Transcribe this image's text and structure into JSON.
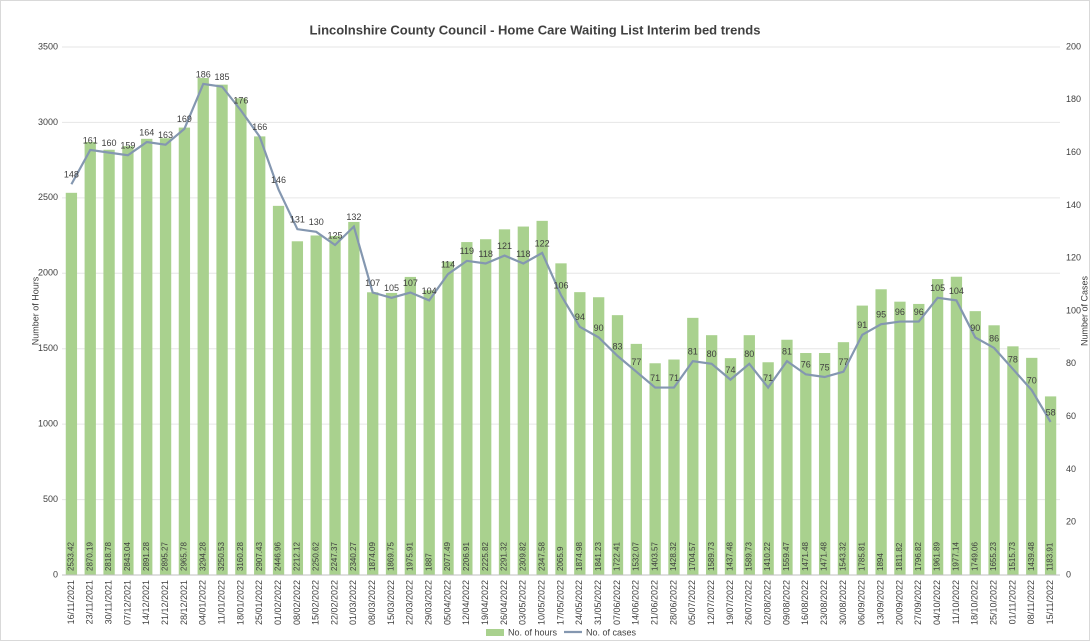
{
  "chart_data": {
    "type": "bar_line",
    "title": "Lincolnshire County Council - Home Care Waiting List Interim bed trends",
    "y_label": "Number of Hours",
    "y2_label": "Number of Cases",
    "categories": [
      "16/11/2021",
      "23/11/2021",
      "30/11/2021",
      "07/12/2021",
      "14/12/2021",
      "21/12/2021",
      "28/12/2021",
      "04/01/2022",
      "11/01/2022",
      "18/01/2022",
      "25/01/2022",
      "01/02/2022",
      "08/02/2022",
      "15/02/2022",
      "22/02/2022",
      "01/03/2022",
      "08/03/2022",
      "15/03/2022",
      "22/03/2022",
      "29/03/2022",
      "05/04/2022",
      "12/04/2022",
      "19/04/2022",
      "26/04/2022",
      "03/05/2022",
      "10/05/2022",
      "17/05/2022",
      "24/05/2022",
      "31/05/2022",
      "07/06/2022",
      "14/06/2022",
      "21/06/2022",
      "28/06/2022",
      "05/07/2022",
      "12/07/2022",
      "19/07/2022",
      "26/07/2022",
      "02/08/2022",
      "09/08/2022",
      "16/08/2022",
      "23/08/2022",
      "30/08/2022",
      "06/09/2022",
      "13/09/2022",
      "20/09/2022",
      "27/09/2022",
      "04/10/2022",
      "11/10/2022",
      "18/10/2022",
      "25/10/2022",
      "01/11/2022",
      "08/11/2022",
      "15/11/2022"
    ],
    "series": [
      {
        "name": "No. of hours",
        "type": "bar",
        "color": "#a9d18e",
        "values": [
          2533.42,
          2870.19,
          2818.78,
          2843.04,
          2891.28,
          2895.27,
          2965.78,
          3294.28,
          3250.53,
          3160.28,
          2907.43,
          2446.96,
          2212.12,
          2250.62,
          2247.37,
          2340.27,
          1874.09,
          1869.75,
          1975.91,
          1887,
          2077.49,
          2206.91,
          2225.82,
          2291.32,
          2309.82,
          2347.58,
          2065.9,
          1874.98,
          1841.23,
          1722.41,
          1532.07,
          1403.57,
          1428.32,
          1704.57,
          1589.73,
          1437.48,
          1589.73,
          1410.22,
          1559.47,
          1471.48,
          1471.48,
          1543.32,
          1785.81,
          1894,
          1811.82,
          1796.82,
          1961.89,
          1977.14,
          1749.06,
          1655.23,
          1515.73,
          1439.48,
          1183.91
        ]
      },
      {
        "name": "No. of cases",
        "type": "line",
        "axis": "y2",
        "color": "#8497b0",
        "values": [
          148,
          161,
          160,
          159,
          164,
          163,
          169,
          186,
          185,
          176,
          166,
          146,
          131,
          130,
          125,
          132,
          107,
          105,
          107,
          104,
          114,
          119,
          118,
          121,
          118,
          122,
          106,
          94,
          90,
          83,
          77,
          71,
          71,
          81,
          80,
          74,
          80,
          71,
          81,
          76,
          75,
          77,
          91,
          95,
          96,
          96,
          105,
          104,
          90,
          86,
          78,
          70,
          58
        ]
      }
    ],
    "ylim": [
      0,
      3500
    ],
    "yticks": [
      0,
      500,
      1000,
      1500,
      2000,
      2500,
      3000,
      3500
    ],
    "y2lim": [
      0,
      200
    ],
    "y2ticks": [
      0,
      20,
      40,
      60,
      80,
      100,
      120,
      140,
      160,
      180,
      200
    ],
    "grid": true,
    "legend": "bottom"
  }
}
